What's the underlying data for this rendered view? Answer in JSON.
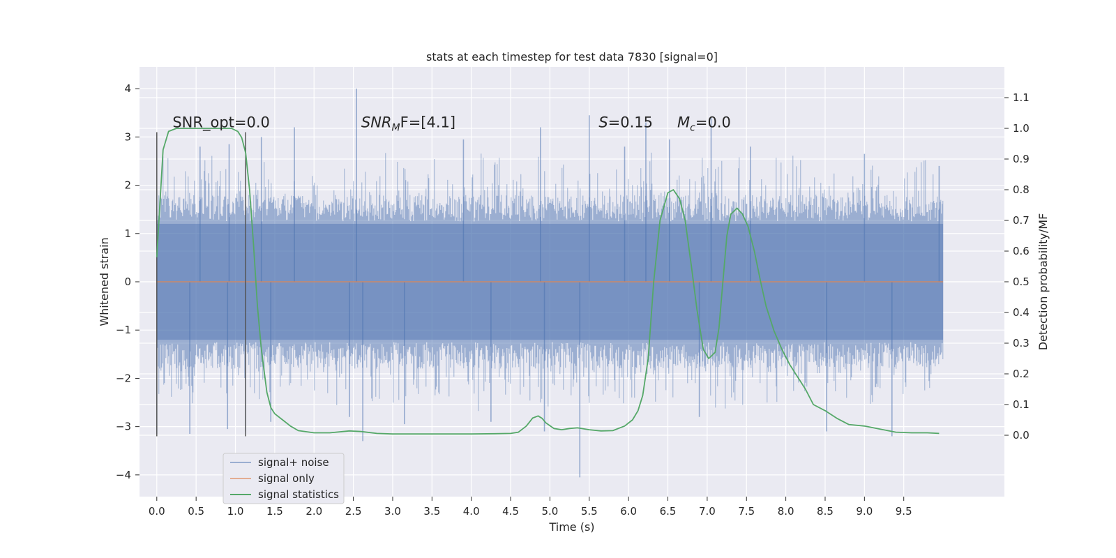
{
  "chart_data": {
    "type": "line",
    "title": "stats at each timestep for test data 7830 [signal=0]",
    "xlabel": "Time (s)",
    "ylabel_left": "Whitened strain",
    "ylabel_right": "Detection probability/MF",
    "xlim": [
      -0.22,
      10.78
    ],
    "ylim_left": [
      -4.45,
      4.45
    ],
    "ylim_right": [
      -0.2,
      1.2
    ],
    "x_ticks": [
      0.0,
      0.5,
      1.0,
      1.5,
      2.0,
      2.5,
      3.0,
      3.5,
      4.0,
      4.5,
      5.0,
      5.5,
      6.0,
      6.5,
      7.0,
      7.5,
      8.0,
      8.5,
      9.0,
      9.5
    ],
    "x_tick_labels": [
      "0.0",
      "0.5",
      "1.0",
      "1.5",
      "2.0",
      "2.5",
      "3.0",
      "3.5",
      "4.0",
      "4.5",
      "5.0",
      "5.5",
      "6.0",
      "6.5",
      "7.0",
      "7.5",
      "8.0",
      "8.5",
      "9.0",
      "9.5"
    ],
    "y_left_ticks": [
      4,
      3,
      2,
      1,
      0,
      -1,
      -2,
      -3,
      -4
    ],
    "y_left_tick_labels": [
      "4",
      "3",
      "2",
      "1",
      "0",
      "−1",
      "−2",
      "−3",
      "−4"
    ],
    "y_right_ticks": [
      1.1,
      1.0,
      0.9,
      0.8,
      0.7,
      0.6,
      0.5,
      0.4,
      0.3,
      0.2,
      0.1,
      0.0
    ],
    "y_right_tick_labels": [
      "1.1",
      "1.0",
      "0.9",
      "0.8",
      "0.7",
      "0.6",
      "0.5",
      "0.4",
      "0.3",
      "0.2",
      "0.1",
      "0.0"
    ],
    "grid": true,
    "legend_position": "lower-left",
    "series": [
      {
        "name": "signal+ noise",
        "axis": "left",
        "color": "#4c72b0",
        "style": "dense noise, x 0.0 to 10.0, typical |y| about 1.3, extremes -4.05 to 4.0",
        "spikes": [
          [
            0.0,
            -3.15
          ],
          [
            0.0,
            1.5
          ],
          [
            0.42,
            -3.15
          ],
          [
            0.55,
            2.8
          ],
          [
            0.9,
            -3.05
          ],
          [
            0.92,
            2.85
          ],
          [
            1.13,
            -3.1
          ],
          [
            1.33,
            3.0
          ],
          [
            1.45,
            -2.9
          ],
          [
            1.75,
            3.2
          ],
          [
            2.45,
            -2.8
          ],
          [
            2.54,
            4.0
          ],
          [
            2.62,
            -3.3
          ],
          [
            3.15,
            -2.95
          ],
          [
            3.9,
            2.95
          ],
          [
            4.25,
            -2.9
          ],
          [
            4.88,
            3.2
          ],
          [
            4.93,
            -3.1
          ],
          [
            5.38,
            -4.05
          ],
          [
            5.5,
            3.45
          ],
          [
            5.95,
            2.8
          ],
          [
            6.22,
            3.3
          ],
          [
            6.52,
            2.95
          ],
          [
            6.9,
            -2.8
          ],
          [
            7.05,
            3.4
          ],
          [
            7.55,
            2.8
          ],
          [
            8.52,
            -3.1
          ],
          [
            9.0,
            2.65
          ],
          [
            9.35,
            -3.2
          ],
          [
            9.95,
            2.4
          ]
        ]
      },
      {
        "name": "signal only",
        "axis": "left",
        "color": "#dd8452",
        "x": [
          0.0,
          10.0
        ],
        "y": [
          0.0,
          0.0
        ]
      },
      {
        "name": "signal statistics",
        "axis": "right",
        "color": "#55a868",
        "x": [
          0.0,
          0.08,
          0.15,
          0.25,
          0.4,
          0.6,
          0.8,
          0.95,
          1.03,
          1.08,
          1.13,
          1.18,
          1.23,
          1.28,
          1.33,
          1.4,
          1.45,
          1.5,
          1.6,
          1.7,
          1.8,
          2.0,
          2.2,
          2.45,
          2.6,
          2.8,
          3.0,
          3.5,
          4.0,
          4.3,
          4.5,
          4.6,
          4.7,
          4.78,
          4.85,
          4.9,
          4.95,
          5.05,
          5.15,
          5.25,
          5.35,
          5.5,
          5.65,
          5.8,
          5.95,
          6.05,
          6.12,
          6.18,
          6.25,
          6.32,
          6.4,
          6.5,
          6.57,
          6.65,
          6.72,
          6.8,
          6.87,
          6.95,
          7.02,
          7.1,
          7.15,
          7.2,
          7.25,
          7.3,
          7.38,
          7.45,
          7.52,
          7.6,
          7.68,
          7.75,
          7.85,
          7.95,
          8.05,
          8.15,
          8.25,
          8.35,
          8.5,
          8.65,
          8.8,
          9.0,
          9.2,
          9.4,
          9.6,
          9.8,
          9.95
        ],
        "y": [
          0.58,
          0.93,
          0.99,
          1.0,
          1.0,
          1.0,
          1.0,
          1.0,
          0.99,
          0.97,
          0.92,
          0.8,
          0.62,
          0.42,
          0.28,
          0.14,
          0.09,
          0.07,
          0.05,
          0.03,
          0.015,
          0.008,
          0.008,
          0.014,
          0.012,
          0.006,
          0.004,
          0.004,
          0.004,
          0.005,
          0.006,
          0.01,
          0.03,
          0.056,
          0.063,
          0.055,
          0.04,
          0.022,
          0.018,
          0.022,
          0.024,
          0.018,
          0.014,
          0.015,
          0.03,
          0.05,
          0.08,
          0.13,
          0.25,
          0.5,
          0.7,
          0.79,
          0.8,
          0.77,
          0.7,
          0.55,
          0.41,
          0.28,
          0.25,
          0.27,
          0.35,
          0.5,
          0.65,
          0.72,
          0.74,
          0.72,
          0.68,
          0.6,
          0.5,
          0.42,
          0.34,
          0.28,
          0.23,
          0.19,
          0.15,
          0.1,
          0.08,
          0.055,
          0.035,
          0.03,
          0.02,
          0.01,
          0.008,
          0.008,
          0.006
        ]
      }
    ],
    "vlines": [
      {
        "x": 0.0,
        "ymin": -3.2,
        "ymax": 3.1,
        "color": "#555555"
      },
      {
        "x": 1.13,
        "ymin": -3.2,
        "ymax": 3.1,
        "color": "#555555"
      }
    ],
    "annotations": [
      {
        "text": "SNR_opt=0.0",
        "x": 0.2,
        "y": 3.2,
        "italic": false
      },
      {
        "text": "SNRMF=[4.1]",
        "base": "SNR",
        "sub": "M",
        "tail": "F=[4.1]",
        "x": 2.6,
        "y": 3.2,
        "italic": true
      },
      {
        "text": "S=0.15",
        "base": "S",
        "tail": "=0.15",
        "x": 5.62,
        "y": 3.2,
        "italic": true
      },
      {
        "text": "Mc=0.0",
        "base": "M",
        "sub": "c",
        "tail": "=0.0",
        "x": 6.62,
        "y": 3.2,
        "italic": true
      }
    ]
  },
  "colors": {
    "background": "#ffffff",
    "plot_bg": "#eaeaf2",
    "grid": "#ffffff",
    "noise": "#4c72b0",
    "signal": "#dd8452",
    "stats": "#55a868"
  }
}
